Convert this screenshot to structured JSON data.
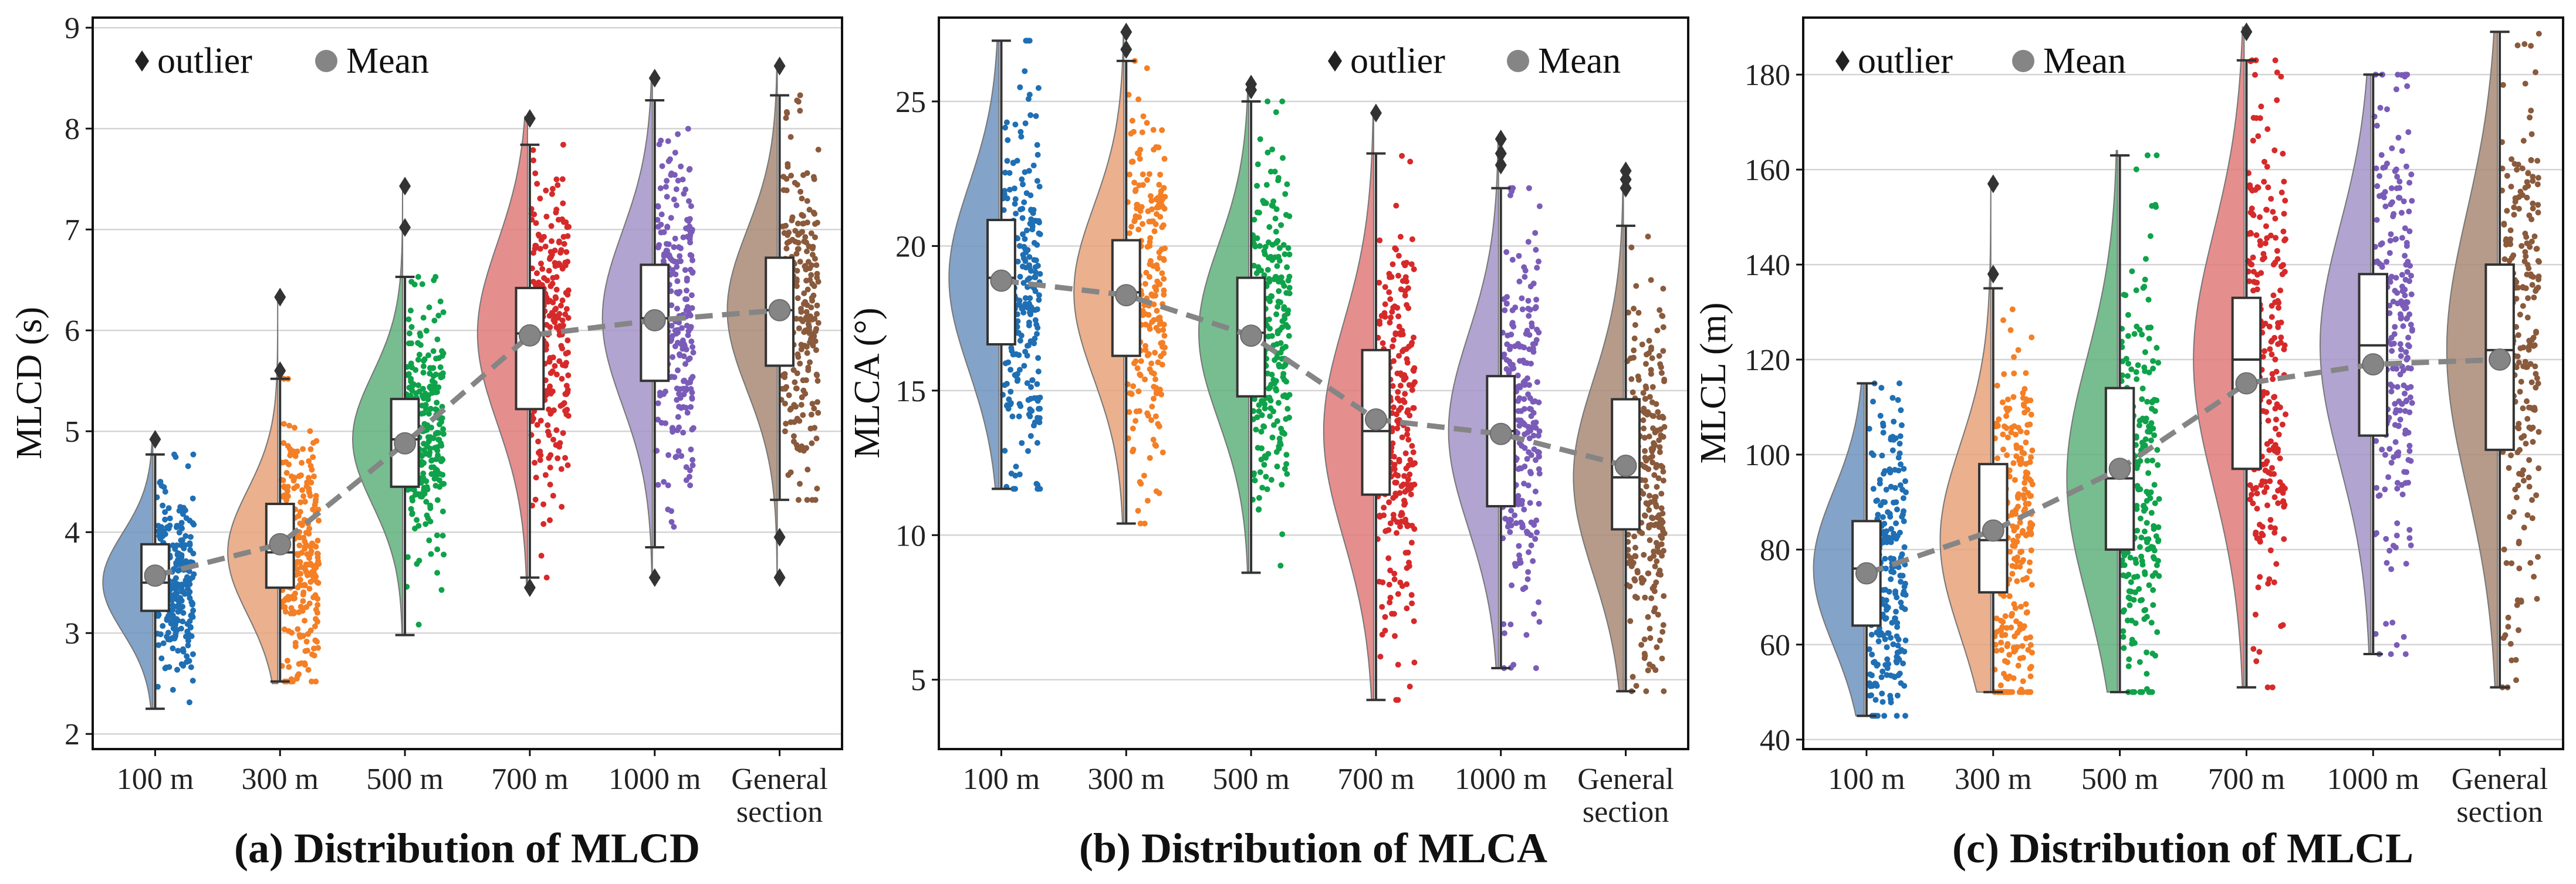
{
  "colors": {
    "series": [
      "#1f6fb4",
      "#f47f25",
      "#0fa24a",
      "#d62a2a",
      "#7a5cb8",
      "#8a5a3c"
    ],
    "violin": [
      "#6f93be",
      "#e8a27a",
      "#5fb17c",
      "#e07a7a",
      "#a494c8",
      "#a98a76"
    ],
    "mean": "#858585",
    "grid": "#d4d4d4",
    "axis": "#111111"
  },
  "chart_data": [
    {
      "type": "raincloud",
      "caption": "(a) Distribution of MLCD",
      "ylabel": "MLCD (s)",
      "ylim": [
        1.85,
        9.1
      ],
      "yticks": [
        2,
        3,
        4,
        5,
        6,
        7,
        8,
        9
      ],
      "categories": [
        {
          "line1": "100 m",
          "line2": ""
        },
        {
          "line1": "300 m",
          "line2": ""
        },
        {
          "line1": "500 m",
          "line2": ""
        },
        {
          "line1": "700 m",
          "line2": ""
        },
        {
          "line1": "1000 m",
          "line2": ""
        },
        {
          "line1": "General",
          "line2": "section"
        }
      ],
      "legend": {
        "outlier": "outlier",
        "mean": "Mean",
        "placement": "top-left"
      },
      "boxes": [
        {
          "min": 2.25,
          "q1": 3.22,
          "median": 3.5,
          "q3": 3.88,
          "max": 4.77,
          "mean": 3.57,
          "outliers": [
            4.92
          ],
          "range": [
            2.25,
            4.95
          ]
        },
        {
          "min": 2.52,
          "q1": 3.45,
          "median": 3.8,
          "q3": 4.28,
          "max": 5.52,
          "mean": 3.88,
          "outliers": [
            5.6,
            6.33
          ],
          "range": [
            2.5,
            6.35
          ]
        },
        {
          "min": 2.98,
          "q1": 4.45,
          "median": 4.92,
          "q3": 5.32,
          "max": 6.53,
          "mean": 4.88,
          "outliers": [
            7.02,
            7.43
          ],
          "range": [
            2.98,
            7.45
          ]
        },
        {
          "min": 3.55,
          "q1": 5.22,
          "median": 5.97,
          "q3": 6.42,
          "max": 7.84,
          "mean": 5.95,
          "outliers": [
            3.45,
            8.1
          ],
          "range": [
            3.45,
            8.12
          ]
        },
        {
          "min": 3.85,
          "q1": 5.5,
          "median": 6.12,
          "q3": 6.65,
          "max": 8.28,
          "mean": 6.1,
          "outliers": [
            3.55,
            8.5
          ],
          "range": [
            3.55,
            8.52
          ]
        },
        {
          "min": 4.32,
          "q1": 5.65,
          "median": 6.2,
          "q3": 6.72,
          "max": 8.33,
          "mean": 6.2,
          "outliers": [
            3.55,
            3.95,
            8.62
          ],
          "range": [
            3.55,
            8.62
          ]
        }
      ]
    },
    {
      "type": "raincloud",
      "caption": "(b) Distribution of MLCA",
      "ylabel": "MLCA (°)",
      "ylim": [
        2.6,
        27.9
      ],
      "yticks": [
        5,
        10,
        15,
        20,
        25
      ],
      "categories": [
        {
          "line1": "100 m",
          "line2": ""
        },
        {
          "line1": "300 m",
          "line2": ""
        },
        {
          "line1": "500 m",
          "line2": ""
        },
        {
          "line1": "700 m",
          "line2": ""
        },
        {
          "line1": "1000 m",
          "line2": ""
        },
        {
          "line1": "General",
          "line2": "section"
        }
      ],
      "legend": {
        "outlier": "outlier",
        "mean": "Mean",
        "placement": "top-right"
      },
      "boxes": [
        {
          "min": 11.6,
          "q1": 16.6,
          "median": 18.9,
          "q3": 20.9,
          "max": 27.1,
          "mean": 18.8,
          "outliers": [],
          "range": [
            11.6,
            27.1
          ]
        },
        {
          "min": 10.4,
          "q1": 16.2,
          "median": 18.4,
          "q3": 20.2,
          "max": 26.4,
          "mean": 18.3,
          "outliers": [
            26.8,
            27.4
          ],
          "range": [
            10.4,
            27.5
          ]
        },
        {
          "min": 8.7,
          "q1": 14.8,
          "median": 17.0,
          "q3": 18.9,
          "max": 25.0,
          "mean": 16.9,
          "outliers": [
            25.4,
            25.6
          ],
          "range": [
            8.7,
            25.7
          ]
        },
        {
          "min": 4.3,
          "q1": 11.4,
          "median": 13.6,
          "q3": 16.4,
          "max": 23.2,
          "mean": 14.0,
          "outliers": [
            24.6
          ],
          "range": [
            4.3,
            24.7
          ]
        },
        {
          "min": 5.4,
          "q1": 11.0,
          "median": 13.6,
          "q3": 15.5,
          "max": 22.0,
          "mean": 13.5,
          "outliers": [
            22.8,
            23.2,
            23.7
          ],
          "range": [
            5.4,
            23.8
          ]
        },
        {
          "min": 4.6,
          "q1": 10.2,
          "median": 12.0,
          "q3": 14.7,
          "max": 20.7,
          "mean": 12.4,
          "outliers": [
            22.0,
            22.3,
            22.6
          ],
          "range": [
            4.6,
            22.7
          ]
        }
      ]
    },
    {
      "type": "raincloud",
      "caption": "(c) Distribution of MLCL",
      "ylabel": "MLCL (m)",
      "ylim": [
        38,
        192
      ],
      "yticks": [
        40,
        60,
        80,
        100,
        120,
        140,
        160,
        180
      ],
      "categories": [
        {
          "line1": "100 m",
          "line2": ""
        },
        {
          "line1": "300 m",
          "line2": ""
        },
        {
          "line1": "500 m",
          "line2": ""
        },
        {
          "line1": "700 m",
          "line2": ""
        },
        {
          "line1": "1000 m",
          "line2": ""
        },
        {
          "line1": "General",
          "line2": "section"
        }
      ],
      "legend": {
        "outlier": "outlier",
        "mean": "Mean",
        "placement": "top-left"
      },
      "boxes": [
        {
          "min": 45,
          "q1": 64,
          "median": 76,
          "q3": 86,
          "max": 115,
          "mean": 75,
          "outliers": [],
          "range": [
            45,
            115
          ]
        },
        {
          "min": 50,
          "q1": 71,
          "median": 82,
          "q3": 98,
          "max": 135,
          "mean": 84,
          "outliers": [
            138,
            157
          ],
          "range": [
            50,
            158
          ]
        },
        {
          "min": 50,
          "q1": 80,
          "median": 95,
          "q3": 114,
          "max": 163,
          "mean": 97,
          "outliers": [],
          "range": [
            50,
            164
          ]
        },
        {
          "min": 51,
          "q1": 97,
          "median": 120,
          "q3": 133,
          "max": 183,
          "mean": 115,
          "outliers": [
            189
          ],
          "range": [
            51,
            190
          ]
        },
        {
          "min": 58,
          "q1": 104,
          "median": 123,
          "q3": 138,
          "max": 180,
          "mean": 119,
          "outliers": [],
          "range": [
            58,
            180
          ]
        },
        {
          "min": 51,
          "q1": 101,
          "median": 122,
          "q3": 140,
          "max": 189,
          "mean": 120,
          "outliers": [],
          "range": [
            51,
            189
          ]
        }
      ]
    }
  ]
}
